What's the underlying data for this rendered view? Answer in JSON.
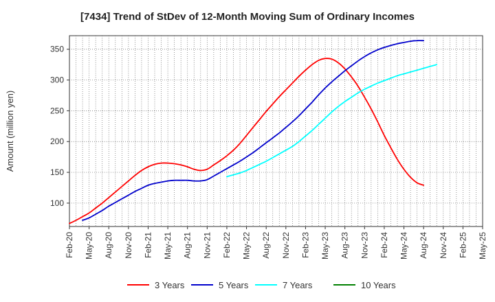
{
  "chart_data": {
    "type": "line",
    "title": "[7434]  Trend of StDev of 12-Month Moving Sum of Ordinary Incomes",
    "ylabel": "Amount (million yen)",
    "xlabel": "",
    "ylim": [
      62,
      372
    ],
    "yticks": [
      100,
      150,
      200,
      250,
      300,
      350
    ],
    "xticks": [
      "Feb-20",
      "May-20",
      "Aug-20",
      "Nov-20",
      "Feb-21",
      "May-21",
      "Aug-21",
      "Nov-21",
      "Feb-22",
      "May-22",
      "Aug-22",
      "Nov-22",
      "Feb-23",
      "May-23",
      "Aug-23",
      "Nov-23",
      "Feb-24",
      "May-24",
      "Aug-24",
      "Nov-24",
      "Feb-25",
      "May-25"
    ],
    "grid": true,
    "legend_position": "bottom",
    "series": [
      {
        "name": "3 Years",
        "color": "#ff0000",
        "start_index": 0,
        "values": [
          67,
          72,
          78,
          84,
          92,
          100,
          109,
          118,
          127,
          136,
          145,
          153,
          159,
          163,
          165,
          165,
          164,
          162,
          159,
          155,
          153,
          155,
          162,
          169,
          177,
          186,
          197,
          210,
          223,
          236,
          249,
          261,
          273,
          284,
          295,
          306,
          316,
          325,
          332,
          335,
          334,
          328,
          318,
          305,
          290,
          272,
          253,
          232,
          210,
          190,
          171,
          155,
          142,
          133,
          129
        ]
      },
      {
        "name": "5 Years",
        "color": "#0000cc",
        "start_index": 2,
        "values": [
          72,
          76,
          82,
          88,
          95,
          101,
          107,
          113,
          119,
          124,
          129,
          132,
          134,
          136,
          137,
          137,
          137,
          136,
          136,
          138,
          144,
          150,
          156,
          162,
          168,
          175,
          182,
          190,
          198,
          206,
          214,
          223,
          232,
          242,
          253,
          264,
          276,
          287,
          297,
          306,
          315,
          323,
          331,
          338,
          344,
          349,
          353,
          356,
          359,
          361,
          363,
          364,
          364
        ]
      },
      {
        "name": "7 Years",
        "color": "#00ffff",
        "start_index": 24,
        "values": [
          143,
          146,
          149,
          153,
          158,
          163,
          168,
          174,
          180,
          186,
          192,
          200,
          209,
          218,
          228,
          238,
          248,
          257,
          265,
          272,
          279,
          285,
          290,
          295,
          299,
          303,
          307,
          310,
          313,
          316,
          319,
          322,
          325
        ]
      },
      {
        "name": "10 Years",
        "color": "#008000",
        "start_index": 0,
        "values": []
      }
    ]
  }
}
